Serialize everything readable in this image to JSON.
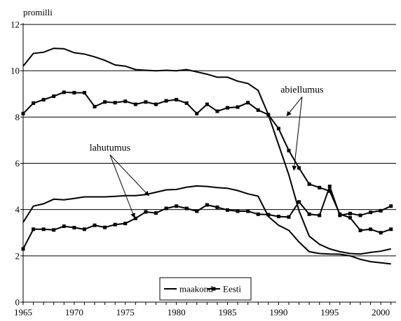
{
  "chart_data": {
    "type": "line",
    "ylabel": "promilli",
    "xlabel": "",
    "title": "",
    "xlim": [
      1965,
      2001.5
    ],
    "ylim": [
      0,
      12
    ],
    "yticks": [
      0,
      2,
      4,
      6,
      8,
      10,
      12
    ],
    "xticks": [
      1965,
      1970,
      1975,
      1980,
      1985,
      1990,
      1995,
      2000
    ],
    "x": [
      1965,
      1966,
      1967,
      1968,
      1969,
      1970,
      1971,
      1972,
      1973,
      1974,
      1975,
      1976,
      1977,
      1978,
      1979,
      1980,
      1981,
      1982,
      1983,
      1984,
      1985,
      1986,
      1987,
      1988,
      1989,
      1990,
      1991,
      1992,
      1993,
      1994,
      1995,
      1996,
      1997,
      1998,
      1999,
      2000,
      2001
    ],
    "grid": "horizontal",
    "legend_position": "bottom-center",
    "series": [
      {
        "name": "maakond",
        "group": "abiellumus",
        "marker": "none",
        "color": "#000000",
        "values": [
          10.2,
          10.75,
          10.8,
          10.97,
          10.95,
          10.78,
          10.72,
          10.6,
          10.45,
          10.25,
          10.2,
          10.05,
          10.02,
          10.0,
          10.02,
          10.0,
          10.05,
          9.95,
          9.85,
          9.72,
          9.72,
          9.55,
          9.45,
          9.15,
          8.1,
          6.8,
          5.5,
          3.95,
          2.85,
          2.5,
          2.3,
          2.18,
          2.1,
          2.08,
          2.15,
          2.2,
          2.3
        ]
      },
      {
        "name": "Eesti",
        "group": "abiellumus",
        "marker": "square",
        "color": "#000000",
        "values": [
          8.15,
          8.6,
          8.75,
          8.9,
          9.07,
          9.05,
          9.05,
          8.45,
          8.65,
          8.62,
          8.68,
          8.55,
          8.65,
          8.55,
          8.7,
          8.75,
          8.6,
          8.15,
          8.55,
          8.25,
          8.4,
          8.43,
          8.62,
          8.3,
          8.1,
          7.5,
          6.55,
          5.8,
          5.1,
          4.95,
          4.8,
          3.8,
          3.65,
          3.1,
          3.15,
          3.0,
          3.15
        ]
      },
      {
        "name": "maakond",
        "group": "lahutumus",
        "marker": "none",
        "color": "#000000",
        "values": [
          3.45,
          4.15,
          4.25,
          4.45,
          4.42,
          4.48,
          4.55,
          4.55,
          4.55,
          4.57,
          4.6,
          4.6,
          4.65,
          4.75,
          4.85,
          4.87,
          4.97,
          5.02,
          5.0,
          4.95,
          4.92,
          4.82,
          4.68,
          4.58,
          3.7,
          3.32,
          3.1,
          2.6,
          2.18,
          2.1,
          2.08,
          2.07,
          2.0,
          1.85,
          1.75,
          1.7,
          1.65
        ]
      },
      {
        "name": "Eesti",
        "group": "lahutumus",
        "marker": "square",
        "color": "#000000",
        "values": [
          2.3,
          3.15,
          3.15,
          3.12,
          3.28,
          3.22,
          3.15,
          3.32,
          3.23,
          3.35,
          3.4,
          3.62,
          3.9,
          3.85,
          4.05,
          4.15,
          4.05,
          3.93,
          4.2,
          4.1,
          3.98,
          3.93,
          3.93,
          3.8,
          3.78,
          3.7,
          3.68,
          4.33,
          3.8,
          3.75,
          5.0,
          3.75,
          3.83,
          3.75,
          3.88,
          3.95,
          4.15
        ]
      }
    ],
    "annotations": [
      {
        "text": "abiellumus",
        "x": 1992.3,
        "y": 9.05,
        "arrows_to": [
          [
            1990.8,
            8.05
          ],
          [
            1991.5,
            5.7
          ]
        ]
      },
      {
        "text": "lahutumus",
        "x": 1973.5,
        "y": 6.55,
        "arrows_to": [
          [
            1977.3,
            4.6
          ],
          [
            1975.9,
            3.65
          ]
        ]
      }
    ],
    "legend": {
      "entries": [
        "maakond",
        "Eesti"
      ]
    }
  }
}
